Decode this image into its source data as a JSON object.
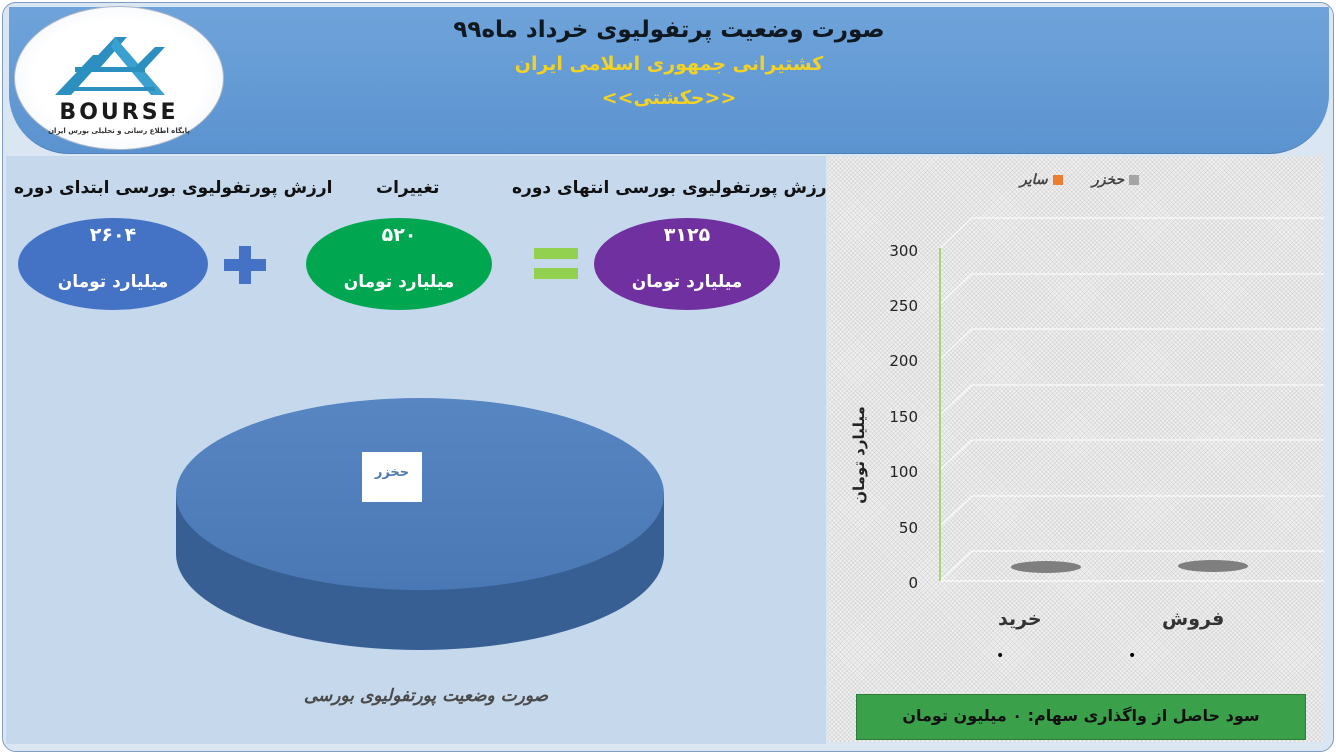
{
  "header": {
    "title": "صورت وضعیت پرتفولیوی خرداد ماه۹۹",
    "company": "کشتیرانی جمهوری اسلامی ایران",
    "symbol": "<<حکشتی>>"
  },
  "logo": {
    "brand": "BOURSE",
    "tagline": "پایگاه اطلاع رسانی و تحلیلی بورس ایران"
  },
  "summary": {
    "end_label": "ارزش پورتفولیوی بورسی انتهای دوره",
    "end_value": "۳۱۲۵",
    "changes_label": "تغییرات",
    "changes_value": "۵۲۰",
    "start_label": "ارزش پورتفولیوی بورسی ابتدای دوره",
    "start_value": "۲۶۰۴",
    "unit": "میلیارد تومان",
    "colors": {
      "end": "#7030a0",
      "changes": "#00a650",
      "start": "#4472c4",
      "plus": "#4472c4",
      "equals": "#92d050"
    }
  },
  "pie": {
    "slice_label": "حخزر",
    "caption": "صورت وضعیت پورتفولیوی بورسی",
    "color": "#4f81bd"
  },
  "trade_chart": {
    "legend": [
      {
        "name": "حخزر",
        "color": "#a5a5a5"
      },
      {
        "name": "سایر",
        "color": "#ed7d31"
      }
    ],
    "y_axis_label": "میلیارد تومان",
    "y_ticks": [
      "0",
      "50",
      "100",
      "150",
      "200",
      "250",
      "300"
    ],
    "categories": [
      "فروش",
      "خرید"
    ],
    "category_points": [
      "•",
      "•"
    ]
  },
  "chart_data": {
    "type": "bar",
    "categories": [
      "فروش",
      "خرید"
    ],
    "series": [
      {
        "name": "حخزر",
        "values": [
          0,
          0
        ]
      },
      {
        "name": "سایر",
        "values": [
          0,
          0
        ]
      }
    ],
    "ylabel": "میلیارد تومان",
    "ylim": [
      0,
      300
    ],
    "grid": true,
    "legend": "top"
  },
  "footer": {
    "text": "سود حاصل از واگذاری سهام: ۰ میلیون تومان"
  }
}
